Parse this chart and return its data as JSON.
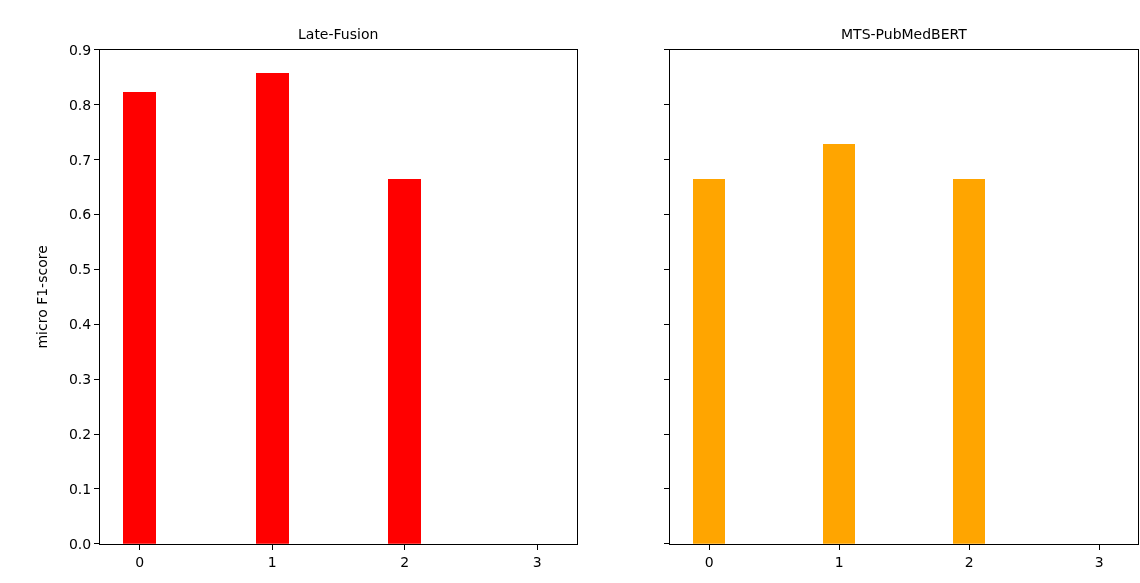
{
  "chart_data": [
    {
      "type": "bar",
      "title": "Late-Fusion",
      "ylabel": "micro F1-score",
      "x": [
        0,
        1,
        2
      ],
      "values": [
        0.824,
        0.858,
        0.665
      ],
      "color": "#ff0000",
      "xlim": [
        -0.3,
        3.3
      ],
      "xticks": [
        0,
        1,
        2,
        3
      ],
      "ylim": [
        0,
        0.9
      ],
      "yticks": [
        {
          "value": 0,
          "label": "0.0"
        },
        0.1,
        0.2,
        0.3,
        0.4,
        0.5,
        0.6,
        0.7,
        0.8,
        0.9
      ]
    },
    {
      "type": "bar",
      "title": "MTS-PubMedBERT",
      "x": [
        0,
        1,
        2
      ],
      "values": [
        0.665,
        0.728,
        0.665
      ],
      "color": "#ffa500",
      "xlim": [
        -0.3,
        3.3
      ],
      "xticks": [
        0,
        1,
        2,
        3
      ],
      "ylim": [
        0,
        0.9
      ],
      "yticks": [
        0,
        0.1,
        0.2,
        0.3,
        0.4,
        0.5,
        0.6,
        0.7,
        0.8,
        0.9
      ],
      "tick_labels": "x"
    }
  ]
}
